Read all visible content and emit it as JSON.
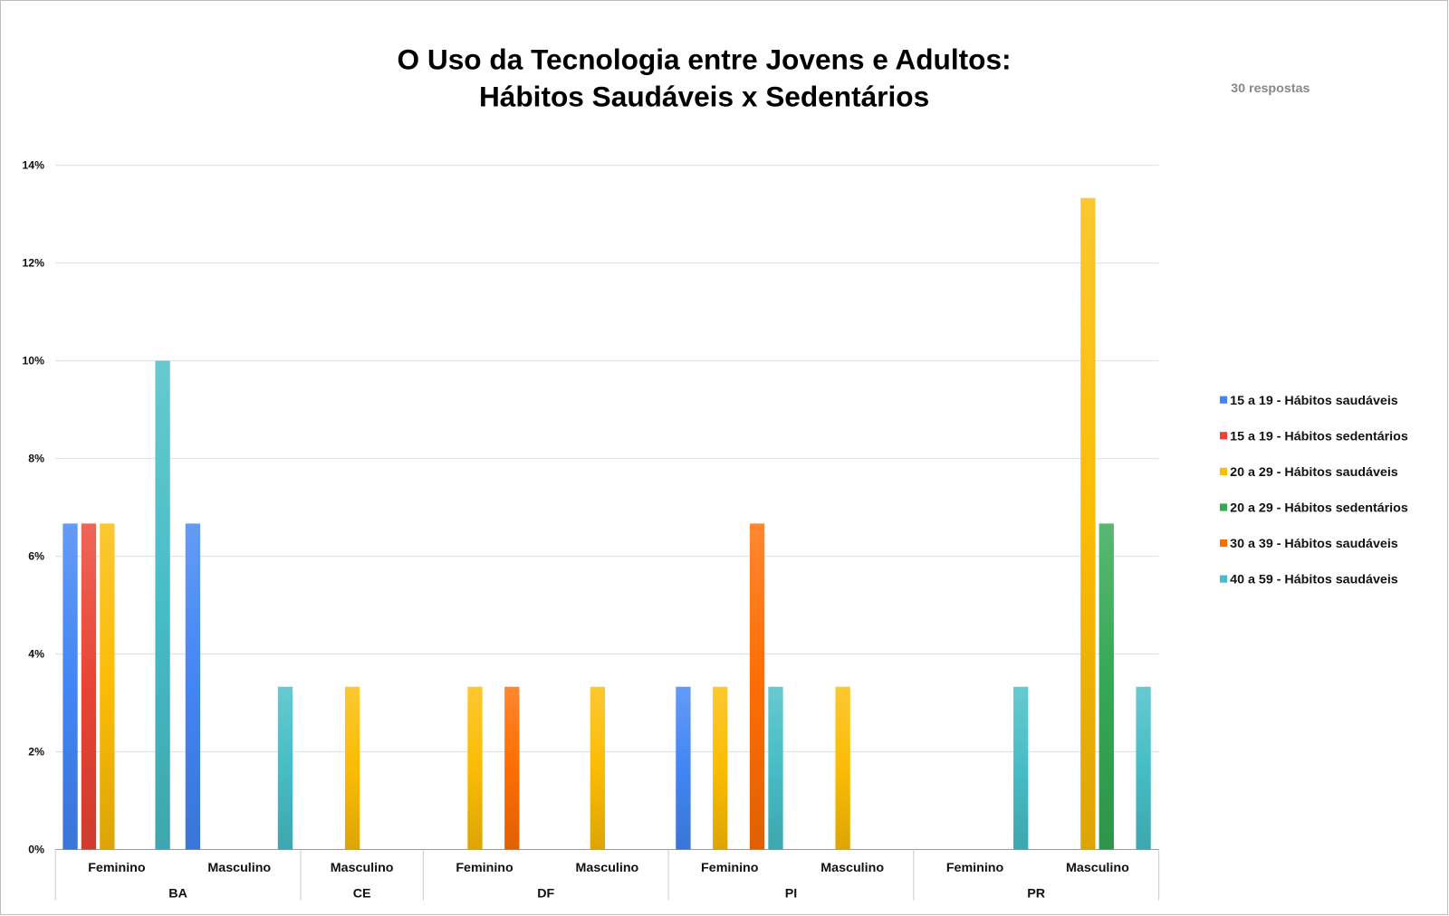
{
  "chart_data": {
    "type": "bar",
    "title": "O Uso da Tecnologia entre Jovens e Adultos:",
    "subtitle": "Hábitos Saudáveis x Sedentários",
    "responses": "30 respostas",
    "xlabel": "",
    "ylabel": "",
    "ylim": [
      0,
      14
    ],
    "yticks": [
      "0%",
      "2%",
      "4%",
      "6%",
      "8%",
      "10%",
      "12%",
      "14%"
    ],
    "grid": true,
    "legend_position": "right",
    "states": [
      "BA",
      "CE",
      "DF",
      "PI",
      "PR"
    ],
    "categories": [
      {
        "state": "BA",
        "gender": "Feminino"
      },
      {
        "state": "BA",
        "gender": "Masculino"
      },
      {
        "state": "CE",
        "gender": "Masculino"
      },
      {
        "state": "DF",
        "gender": "Feminino"
      },
      {
        "state": "DF",
        "gender": "Masculino"
      },
      {
        "state": "PI",
        "gender": "Feminino"
      },
      {
        "state": "PI",
        "gender": "Masculino"
      },
      {
        "state": "PR",
        "gender": "Feminino"
      },
      {
        "state": "PR",
        "gender": "Masculino"
      }
    ],
    "series": [
      {
        "name": "15 a 19 - Hábitos saudáveis",
        "color": "#4285f4",
        "values": [
          6.67,
          6.67,
          0,
          0,
          0,
          3.33,
          0,
          0,
          0
        ]
      },
      {
        "name": "15 a 19 - Hábitos sedentários",
        "color": "#ea4335",
        "values": [
          6.67,
          0,
          0,
          0,
          0,
          0,
          0,
          0,
          0
        ]
      },
      {
        "name": "20 a 29 - Hábitos saudáveis",
        "color": "#fbbc04",
        "values": [
          6.67,
          0,
          3.33,
          3.33,
          3.33,
          3.33,
          3.33,
          0,
          13.33
        ]
      },
      {
        "name": "20 a 29 - Hábitos sedentários",
        "color": "#34a853",
        "values": [
          0,
          0,
          0,
          0,
          0,
          0,
          0,
          0,
          6.67
        ]
      },
      {
        "name": "30 a 39 - Hábitos saudáveis",
        "color": "#ff6d01",
        "values": [
          0,
          0,
          0,
          3.33,
          0,
          6.67,
          0,
          0,
          0
        ]
      },
      {
        "name": "40 a 59 - Hábitos saudáveis",
        "color": "#46bdc6",
        "values": [
          10,
          3.33,
          0,
          0,
          0,
          3.33,
          0,
          3.33,
          3.33
        ]
      }
    ]
  }
}
